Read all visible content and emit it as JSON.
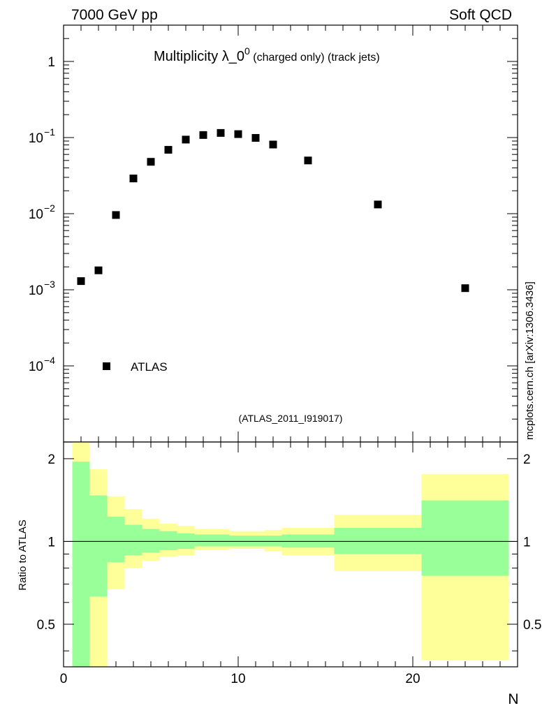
{
  "header": {
    "left": "7000 GeV pp",
    "right": "Soft QCD"
  },
  "watermark": "mcplots.cern.ch [arXiv:1306.3436]",
  "chart_data": {
    "type": "scatter",
    "title": "Multiplicity λ_0",
    "title_sup": "0",
    "title_suffix": " (charged only) (track jets)",
    "reference": "(ATLAS_2011_I919017)",
    "xlabel": "N",
    "ylabel_ratio": "Ratio to ATLAS",
    "xlim": [
      0,
      26
    ],
    "ylim_main": [
      1e-05,
      3
    ],
    "ylim_ratio": [
      0.35,
      2.3
    ],
    "main_yscale": "log",
    "ratio_yscale": "log",
    "x_ticks": [
      0,
      10,
      20
    ],
    "y_ticks_main": [
      {
        "value": 0.0001,
        "base": "10",
        "exp": "−4"
      },
      {
        "value": 0.001,
        "base": "10",
        "exp": "−3"
      },
      {
        "value": 0.01,
        "base": "10",
        "exp": "−2"
      },
      {
        "value": 0.1,
        "base": "10",
        "exp": "−1"
      },
      {
        "value": 1,
        "base": "1",
        "exp": ""
      }
    ],
    "y_ticks_ratio": [
      {
        "value": 0.5,
        "label": "0.5"
      },
      {
        "value": 1,
        "label": "1"
      },
      {
        "value": 2,
        "label": "2"
      }
    ],
    "legend": {
      "position": "bottom-left",
      "entries": [
        "ATLAS"
      ]
    },
    "series": [
      {
        "name": "ATLAS",
        "points": [
          {
            "x": 1,
            "y": 0.0013
          },
          {
            "x": 2,
            "y": 0.0018
          },
          {
            "x": 3,
            "y": 0.0096
          },
          {
            "x": 4,
            "y": 0.029
          },
          {
            "x": 5,
            "y": 0.048
          },
          {
            "x": 6,
            "y": 0.069
          },
          {
            "x": 7,
            "y": 0.094
          },
          {
            "x": 8,
            "y": 0.108
          },
          {
            "x": 9,
            "y": 0.115
          },
          {
            "x": 10,
            "y": 0.111
          },
          {
            "x": 11,
            "y": 0.099
          },
          {
            "x": 12,
            "y": 0.081
          },
          {
            "x": 14,
            "y": 0.05
          },
          {
            "x": 18,
            "y": 0.0132
          },
          {
            "x": 23,
            "y": 0.00105
          }
        ]
      }
    ],
    "ratio_bands": [
      {
        "x0": 0.5,
        "x1": 1.5,
        "inner": [
          0.35,
          1.95
        ],
        "outer": [
          0.35,
          2.3
        ]
      },
      {
        "x0": 1.5,
        "x1": 2.5,
        "inner": [
          0.63,
          1.47
        ],
        "outer": [
          0.35,
          1.83
        ]
      },
      {
        "x0": 2.5,
        "x1": 3.5,
        "inner": [
          0.84,
          1.23
        ],
        "outer": [
          0.67,
          1.46
        ]
      },
      {
        "x0": 3.5,
        "x1": 4.5,
        "inner": [
          0.89,
          1.15
        ],
        "outer": [
          0.8,
          1.31
        ]
      },
      {
        "x0": 4.5,
        "x1": 5.5,
        "inner": [
          0.91,
          1.11
        ],
        "outer": [
          0.85,
          1.21
        ]
      },
      {
        "x0": 5.5,
        "x1": 6.5,
        "inner": [
          0.93,
          1.09
        ],
        "outer": [
          0.88,
          1.16
        ]
      },
      {
        "x0": 6.5,
        "x1": 7.5,
        "inner": [
          0.94,
          1.07
        ],
        "outer": [
          0.89,
          1.14
        ]
      },
      {
        "x0": 7.5,
        "x1": 9.5,
        "inner": [
          0.96,
          1.06
        ],
        "outer": [
          0.93,
          1.11
        ]
      },
      {
        "x0": 9.5,
        "x1": 11.5,
        "inner": [
          0.96,
          1.05
        ],
        "outer": [
          0.94,
          1.09
        ]
      },
      {
        "x0": 11.5,
        "x1": 12.5,
        "inner": [
          0.96,
          1.05
        ],
        "outer": [
          0.92,
          1.1
        ]
      },
      {
        "x0": 12.5,
        "x1": 15.5,
        "inner": [
          0.95,
          1.06
        ],
        "outer": [
          0.89,
          1.12
        ]
      },
      {
        "x0": 15.5,
        "x1": 20.5,
        "inner": [
          0.9,
          1.12
        ],
        "outer": [
          0.78,
          1.25
        ]
      },
      {
        "x0": 20.5,
        "x1": 25.5,
        "inner": [
          0.75,
          1.41
        ],
        "outer": [
          0.37,
          1.76
        ]
      }
    ],
    "colors": {
      "inner_band": "#99ff99",
      "outer_band": "#ffff99",
      "marker": "#000000",
      "watermark": "#555555",
      "reference": "#888888"
    }
  }
}
